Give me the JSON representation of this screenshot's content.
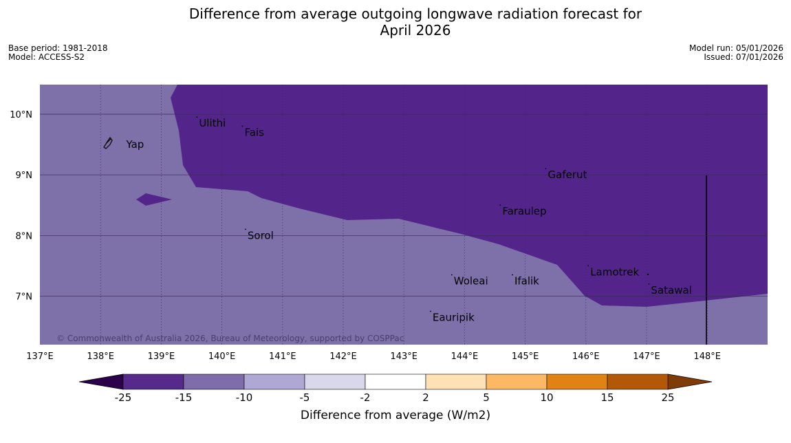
{
  "title_line1": "Difference from average outgoing longwave radiation forecast for",
  "title_line2": "April 2026",
  "base_period": "Base period: 1981-2018",
  "model": "Model: ACCESS-S2",
  "model_run": "Model run: 05/01/2026",
  "issued": "Issued: 07/01/2026",
  "copyright": "© Commonwealth of Australia 2026, Bureau of Meteorology, supported by COSPPac",
  "lon_ticks": [
    "137°E",
    "138°E",
    "139°E",
    "140°E",
    "141°E",
    "142°E",
    "143°E",
    "144°E",
    "145°E",
    "146°E",
    "147°E",
    "148°E"
  ],
  "lat_ticks": [
    "10°N",
    "9°N",
    "8°N",
    "7°N"
  ],
  "islands": [
    {
      "name": "Yap",
      "lon": 138.4,
      "lat": 9.5
    },
    {
      "name": "Ulithi",
      "lon": 139.6,
      "lat": 9.85
    },
    {
      "name": "Fais",
      "lon": 140.35,
      "lat": 9.7
    },
    {
      "name": "Gaferut",
      "lon": 145.35,
      "lat": 9.0
    },
    {
      "name": "Faraulep",
      "lon": 144.6,
      "lat": 8.4
    },
    {
      "name": "Sorol",
      "lon": 140.4,
      "lat": 8.0
    },
    {
      "name": "Woleai",
      "lon": 143.8,
      "lat": 7.25
    },
    {
      "name": "Ifalik",
      "lon": 144.8,
      "lat": 7.25
    },
    {
      "name": "Lamotrek",
      "lon": 146.05,
      "lat": 7.4
    },
    {
      "name": "Satawal",
      "lon": 147.05,
      "lat": 7.1
    },
    {
      "name": "Eauripik",
      "lon": 143.45,
      "lat": 6.65
    }
  ],
  "colorbar": {
    "label": "Difference from average (W/m2)",
    "tick_labels": [
      "-25",
      "-15",
      "-10",
      "-5",
      "-2",
      "2",
      "5",
      "10",
      "15",
      "25"
    ],
    "colors": [
      "#552a8a",
      "#7e6daa",
      "#b0a8d4",
      "#d8d8ea",
      "#ffffff",
      "#fee1b5",
      "#fdb863",
      "#e08214",
      "#b35806"
    ],
    "low_extend_color": "#2d004b",
    "high_extend_color": "#7f3b08"
  },
  "map_colors": {
    "background_field": "#7e71aa",
    "anomaly_field": "#53248a"
  }
}
